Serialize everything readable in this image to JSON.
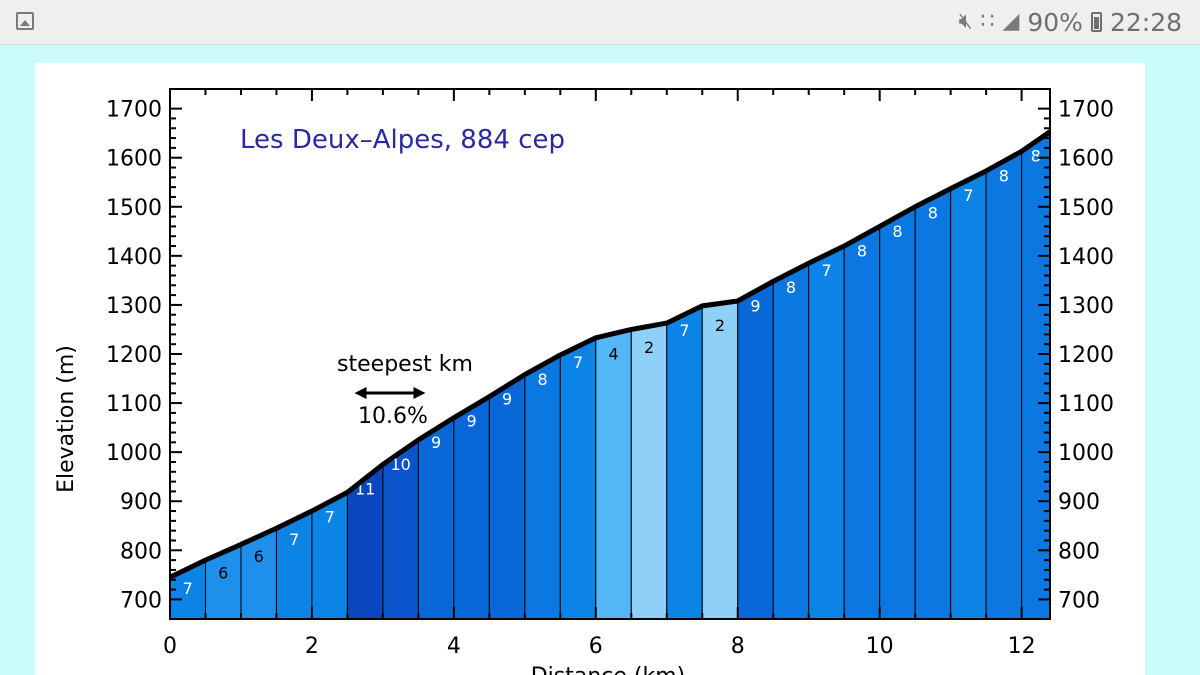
{
  "status_bar": {
    "left_icon": "image-icon",
    "right_icons": [
      "mute-icon",
      "wifi-icon",
      "signal-icon"
    ],
    "battery_text": "90%",
    "battery_icon": "battery-icon",
    "time": "22:28"
  },
  "chart_data": {
    "type": "area",
    "title": "Les Deux–Alpes, 884 cep",
    "xlabel": "Distance (km)",
    "ylabel": "Elevation (m)",
    "xlim": [
      0,
      12.4
    ],
    "ylim": [
      660,
      1740
    ],
    "x_ticks": [
      0,
      2,
      4,
      6,
      8,
      10,
      12
    ],
    "y_ticks": [
      700,
      800,
      900,
      1000,
      1100,
      1200,
      1300,
      1400,
      1500,
      1600,
      1700
    ],
    "grid": false,
    "segments_x": [
      0,
      0.5,
      1,
      1.5,
      2,
      2.5,
      3,
      3.5,
      4,
      4.5,
      5,
      5.5,
      6,
      6.5,
      7,
      7.5,
      8,
      8.5,
      9,
      9.5,
      10,
      10.5,
      11,
      11.5,
      12,
      12.4
    ],
    "elevations": [
      745,
      780,
      812,
      845,
      880,
      918,
      975,
      1025,
      1070,
      1113,
      1158,
      1198,
      1233,
      1250,
      1263,
      1298,
      1308,
      1348,
      1385,
      1420,
      1460,
      1500,
      1537,
      1573,
      1613,
      1653
    ],
    "gradients": [
      7,
      6,
      6,
      7,
      7,
      11,
      10,
      9,
      9,
      9,
      8,
      7,
      4,
      2,
      7,
      2,
      9,
      8,
      7,
      8,
      8,
      8,
      7,
      8,
      8
    ],
    "annotation": {
      "text": "steepest km",
      "value_text": "10.6%",
      "x_start": 2.6,
      "x_end": 3.6
    },
    "colors": {
      "g2": "#8ed0f8",
      "g4": "#54b6f4",
      "g6": "#1e90ec",
      "g7": "#0c84e6",
      "g8": "#0a78e0",
      "g9": "#0868d8",
      "g10": "#0a55cc",
      "g11": "#0a46be",
      "title_color": "#2a2aa0",
      "outline": "#000000"
    }
  }
}
